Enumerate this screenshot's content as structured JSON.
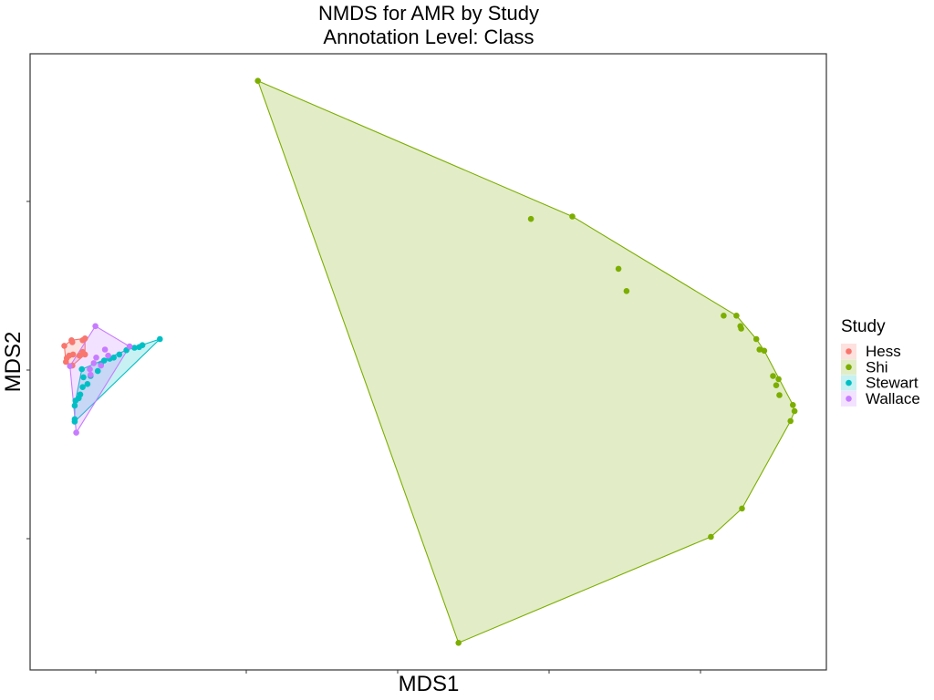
{
  "chart_data": {
    "type": "scatter",
    "title": "NMDS for AMR by Study",
    "subtitle": "Annotation Level: Class",
    "xlabel": "MDS1",
    "ylabel": "MDS2",
    "xlim": [
      0,
      100
    ],
    "ylim": [
      0,
      100
    ],
    "grid": false,
    "hulls": true,
    "legend": {
      "title": "Study",
      "position": "right"
    },
    "series": [
      {
        "name": "Hess",
        "color": "#F8766D",
        "points": [
          [
            4.3,
            52.6
          ],
          [
            4.6,
            50.6
          ],
          [
            4.9,
            51.0
          ],
          [
            4.5,
            50.0
          ],
          [
            5.3,
            49.4
          ],
          [
            5.4,
            51.2
          ],
          [
            5.2,
            53.5
          ],
          [
            5.3,
            53.2
          ],
          [
            6.2,
            51.0
          ],
          [
            6.6,
            51.6
          ],
          [
            6.9,
            51.2
          ],
          [
            6.6,
            53.5
          ],
          [
            6.9,
            53.8
          ]
        ]
      },
      {
        "name": "Shi",
        "color": "#7CAE00",
        "points": [
          [
            28.6,
            95.6
          ],
          [
            62.9,
            73.2
          ],
          [
            68.1,
            73.6
          ],
          [
            73.9,
            65.1
          ],
          [
            74.9,
            61.5
          ],
          [
            87.1,
            57.5
          ],
          [
            88.7,
            57.5
          ],
          [
            89.2,
            55.8
          ],
          [
            89.3,
            55.4
          ],
          [
            91.2,
            53.7
          ],
          [
            91.6,
            52.0
          ],
          [
            92.2,
            51.8
          ],
          [
            93.3,
            47.7
          ],
          [
            94.0,
            47.2
          ],
          [
            93.7,
            46.2
          ],
          [
            94.1,
            44.6
          ],
          [
            95.8,
            43.0
          ],
          [
            96.0,
            42.0
          ],
          [
            95.5,
            40.4
          ],
          [
            89.4,
            26.2
          ],
          [
            85.5,
            21.6
          ],
          [
            53.8,
            4.4
          ]
        ]
      },
      {
        "name": "Stewart",
        "color": "#00BFC4",
        "points": [
          [
            16.3,
            53.7
          ],
          [
            14.1,
            52.7
          ],
          [
            13.7,
            52.4
          ],
          [
            13.1,
            52.3
          ],
          [
            12.1,
            51.9
          ],
          [
            11.2,
            51.2
          ],
          [
            10.5,
            50.7
          ],
          [
            10.0,
            50.5
          ],
          [
            9.3,
            50.2
          ],
          [
            8.9,
            49.6
          ],
          [
            8.5,
            48.5
          ],
          [
            7.6,
            47.7
          ],
          [
            7.2,
            46.4
          ],
          [
            6.7,
            47.5
          ],
          [
            6.5,
            48.8
          ],
          [
            6.6,
            45.9
          ],
          [
            6.3,
            44.7
          ],
          [
            6.1,
            44.1
          ],
          [
            5.7,
            43.7
          ],
          [
            5.6,
            42.9
          ],
          [
            5.6,
            40.7
          ],
          [
            5.6,
            40.3
          ]
        ]
      },
      {
        "name": "Wallace",
        "color": "#C77CFF",
        "points": [
          [
            8.2,
            55.8
          ],
          [
            12.5,
            52.5
          ],
          [
            9.4,
            52.0
          ],
          [
            9.8,
            51.0
          ],
          [
            8.3,
            50.7
          ],
          [
            8.0,
            49.8
          ],
          [
            8.9,
            49.4
          ],
          [
            7.5,
            48.8
          ],
          [
            7.6,
            47.9
          ],
          [
            5.0,
            49.3
          ],
          [
            5.8,
            38.5
          ]
        ]
      }
    ]
  }
}
